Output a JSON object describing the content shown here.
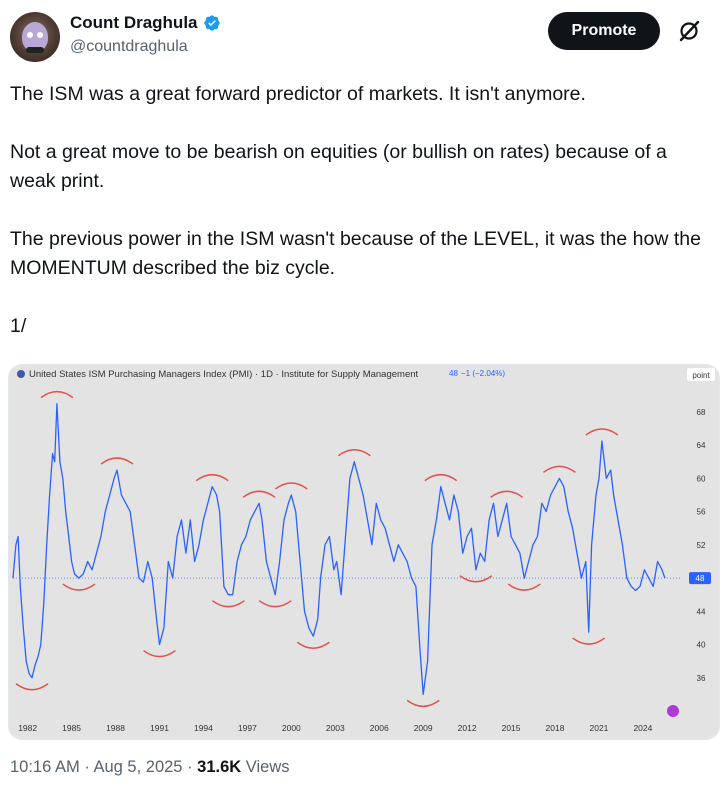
{
  "user": {
    "display_name": "Count Draghula",
    "handle": "@countdraghula",
    "verified": true,
    "avatar": "count-puppet-avatar"
  },
  "actions": {
    "promote_label": "Promote",
    "grok_icon": "grok-slash-icon"
  },
  "tweet": {
    "paragraphs": [
      "The ISM was a great forward predictor of markets. It isn't anymore.",
      "Not a great move to be bearish on equities (or bullish on rates) because of a weak print.",
      "The previous power in the ISM wasn't because of the LEVEL, it was the how the MOMENTUM described the biz cycle.",
      "1/"
    ]
  },
  "footer": {
    "time": "10:16 AM",
    "date": "Aug 5, 2025",
    "views_count": "31.6K",
    "views_label": "Views"
  },
  "colors": {
    "accent": "#1d9bf0",
    "line": "#2962ff",
    "circles": "#e0524f",
    "chart_bg": "#e3e3e3"
  },
  "chart_data": {
    "type": "line",
    "title": "United States ISM Purchasing Managers Index (PMI) · 1D · Institute for Supply Management",
    "last_value_label": "48",
    "change_label": "−1 (−2.04%)",
    "y_axis_label": "point",
    "current_value_tag": "48",
    "ylim": [
      32,
      71
    ],
    "yticks": [
      36,
      40,
      44,
      48,
      52,
      56,
      60,
      64,
      68
    ],
    "xlim": [
      1981.0,
      2026.6
    ],
    "xticks": [
      "1982",
      "1985",
      "1988",
      "1991",
      "1994",
      "1997",
      "2000",
      "2003",
      "2006",
      "2009",
      "2012",
      "2015",
      "2018",
      "2021",
      "2024"
    ],
    "grid": false,
    "reference_line": 48,
    "series": [
      {
        "values": [
          [
            1981.0,
            48
          ],
          [
            1981.2,
            52
          ],
          [
            1981.35,
            53
          ],
          [
            1981.5,
            47
          ],
          [
            1981.7,
            42
          ],
          [
            1981.9,
            38
          ],
          [
            1982.1,
            36.5
          ],
          [
            1982.3,
            36
          ],
          [
            1982.5,
            37.5
          ],
          [
            1982.7,
            38.5
          ],
          [
            1982.9,
            40
          ],
          [
            1983.1,
            45
          ],
          [
            1983.3,
            52
          ],
          [
            1983.5,
            58
          ],
          [
            1983.7,
            63
          ],
          [
            1983.85,
            62
          ],
          [
            1984.0,
            69
          ],
          [
            1984.2,
            62
          ],
          [
            1984.4,
            60
          ],
          [
            1984.6,
            56
          ],
          [
            1984.8,
            53
          ],
          [
            1985.0,
            50
          ],
          [
            1985.2,
            48.5
          ],
          [
            1985.5,
            48
          ],
          [
            1985.8,
            48.5
          ],
          [
            1986.1,
            50
          ],
          [
            1986.4,
            49
          ],
          [
            1986.7,
            51
          ],
          [
            1987.0,
            53
          ],
          [
            1987.3,
            56
          ],
          [
            1987.6,
            58
          ],
          [
            1987.9,
            60
          ],
          [
            1988.1,
            61
          ],
          [
            1988.4,
            58
          ],
          [
            1988.7,
            57
          ],
          [
            1989.0,
            56
          ],
          [
            1989.3,
            52
          ],
          [
            1989.6,
            48
          ],
          [
            1989.9,
            47.5
          ],
          [
            1990.2,
            50
          ],
          [
            1990.5,
            48
          ],
          [
            1990.8,
            43
          ],
          [
            1991.0,
            40
          ],
          [
            1991.3,
            42
          ],
          [
            1991.6,
            50
          ],
          [
            1991.9,
            48
          ],
          [
            1992.2,
            53
          ],
          [
            1992.5,
            55
          ],
          [
            1992.8,
            51
          ],
          [
            1993.1,
            55
          ],
          [
            1993.4,
            50
          ],
          [
            1993.7,
            52
          ],
          [
            1994.0,
            55
          ],
          [
            1994.3,
            57
          ],
          [
            1994.6,
            59
          ],
          [
            1994.9,
            58
          ],
          [
            1995.1,
            56
          ],
          [
            1995.4,
            47
          ],
          [
            1995.7,
            46
          ],
          [
            1996.0,
            46
          ],
          [
            1996.3,
            50
          ],
          [
            1996.6,
            52
          ],
          [
            1996.9,
            53
          ],
          [
            1997.2,
            55
          ],
          [
            1997.5,
            56
          ],
          [
            1997.8,
            57
          ],
          [
            1998.0,
            55
          ],
          [
            1998.3,
            50
          ],
          [
            1998.6,
            48
          ],
          [
            1998.9,
            46
          ],
          [
            1999.2,
            50
          ],
          [
            1999.5,
            55
          ],
          [
            1999.8,
            57
          ],
          [
            2000.0,
            58
          ],
          [
            2000.3,
            56
          ],
          [
            2000.6,
            50
          ],
          [
            2000.9,
            44
          ],
          [
            2001.2,
            42
          ],
          [
            2001.5,
            41
          ],
          [
            2001.8,
            43
          ],
          [
            2002.0,
            48
          ],
          [
            2002.3,
            52
          ],
          [
            2002.6,
            53
          ],
          [
            2002.9,
            49
          ],
          [
            2003.1,
            50
          ],
          [
            2003.4,
            46
          ],
          [
            2003.7,
            53
          ],
          [
            2004.0,
            60
          ],
          [
            2004.3,
            62
          ],
          [
            2004.6,
            60
          ],
          [
            2004.9,
            58
          ],
          [
            2005.2,
            55
          ],
          [
            2005.5,
            52
          ],
          [
            2005.8,
            57
          ],
          [
            2006.1,
            55
          ],
          [
            2006.4,
            54
          ],
          [
            2006.7,
            52
          ],
          [
            2007.0,
            50
          ],
          [
            2007.3,
            52
          ],
          [
            2007.6,
            51
          ],
          [
            2007.9,
            50
          ],
          [
            2008.2,
            48
          ],
          [
            2008.5,
            47
          ],
          [
            2008.8,
            39
          ],
          [
            2009.0,
            34
          ],
          [
            2009.3,
            38
          ],
          [
            2009.6,
            52
          ],
          [
            2009.9,
            55
          ],
          [
            2010.2,
            59
          ],
          [
            2010.5,
            57
          ],
          [
            2010.8,
            55
          ],
          [
            2011.1,
            58
          ],
          [
            2011.4,
            56
          ],
          [
            2011.7,
            51
          ],
          [
            2012.0,
            53
          ],
          [
            2012.3,
            54
          ],
          [
            2012.6,
            49
          ],
          [
            2012.9,
            51
          ],
          [
            2013.2,
            50
          ],
          [
            2013.5,
            55
          ],
          [
            2013.8,
            57
          ],
          [
            2014.1,
            53
          ],
          [
            2014.4,
            55
          ],
          [
            2014.7,
            57
          ],
          [
            2015.0,
            53
          ],
          [
            2015.3,
            52
          ],
          [
            2015.6,
            51
          ],
          [
            2015.9,
            48
          ],
          [
            2016.2,
            50
          ],
          [
            2016.5,
            52
          ],
          [
            2016.8,
            53
          ],
          [
            2017.1,
            57
          ],
          [
            2017.4,
            56
          ],
          [
            2017.7,
            58
          ],
          [
            2018.0,
            59
          ],
          [
            2018.3,
            60
          ],
          [
            2018.6,
            59
          ],
          [
            2018.9,
            56
          ],
          [
            2019.2,
            54
          ],
          [
            2019.5,
            51
          ],
          [
            2019.8,
            48
          ],
          [
            2020.1,
            50
          ],
          [
            2020.3,
            41.5
          ],
          [
            2020.5,
            52
          ],
          [
            2020.8,
            58
          ],
          [
            2021.0,
            60
          ],
          [
            2021.2,
            64.5
          ],
          [
            2021.5,
            60
          ],
          [
            2021.8,
            61
          ],
          [
            2022.0,
            58
          ],
          [
            2022.3,
            55
          ],
          [
            2022.6,
            52
          ],
          [
            2022.9,
            48
          ],
          [
            2023.2,
            47
          ],
          [
            2023.5,
            46.5
          ],
          [
            2023.8,
            47
          ],
          [
            2024.1,
            49
          ],
          [
            2024.4,
            48
          ],
          [
            2024.7,
            47
          ],
          [
            2025.0,
            50
          ],
          [
            2025.3,
            49
          ],
          [
            2025.5,
            48
          ]
        ]
      }
    ]
  }
}
